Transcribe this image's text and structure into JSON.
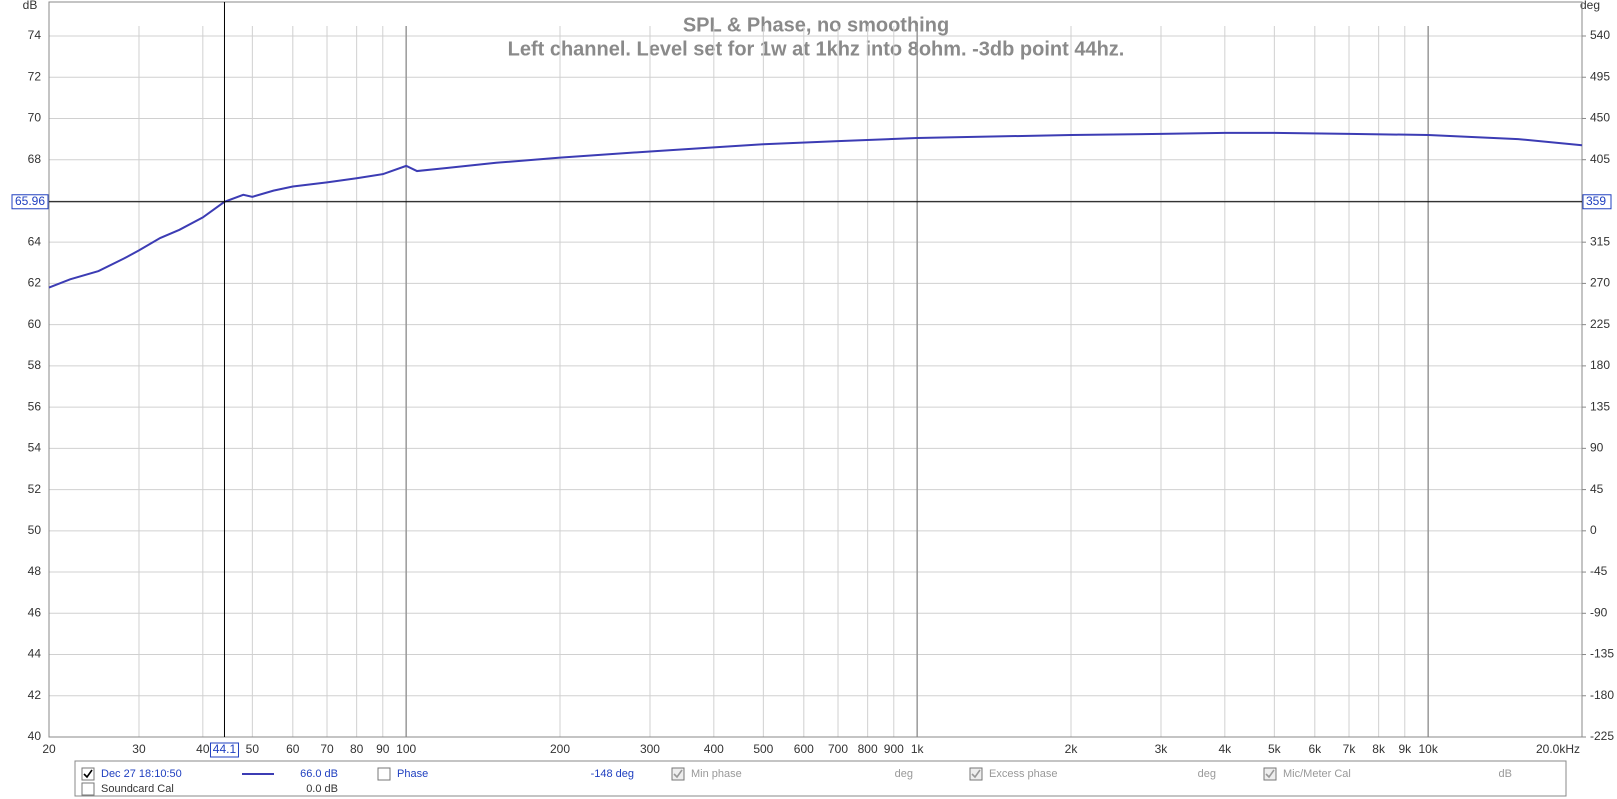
{
  "chart_data": {
    "type": "line",
    "title": "SPL & Phase, no smoothing",
    "subtitle": "Left channel. Level set for 1w at 1khz into 8ohm. -3db point 44hz.",
    "y_label": "dB",
    "y2_label": "deg",
    "log_x": true,
    "grid": true,
    "x": [
      20,
      22,
      25,
      28,
      30,
      33,
      36,
      40,
      44.1,
      48,
      50,
      55,
      60,
      70,
      80,
      90,
      100,
      105,
      120,
      150,
      200,
      300,
      400,
      500,
      700,
      1000,
      2000,
      3000,
      4000,
      5000,
      7000,
      10000,
      15000,
      20000
    ],
    "series": [
      {
        "name": "Dec 27 18:10:50",
        "color": "#3c3cb4",
        "values": [
          61.8,
          62.2,
          62.6,
          63.2,
          63.6,
          64.2,
          64.6,
          65.2,
          65.96,
          66.3,
          66.2,
          66.5,
          66.7,
          66.9,
          67.1,
          67.3,
          67.7,
          67.45,
          67.6,
          67.85,
          68.1,
          68.4,
          68.6,
          68.75,
          68.9,
          69.05,
          69.2,
          69.25,
          69.3,
          69.3,
          69.25,
          69.2,
          69.0,
          68.7
        ]
      }
    ],
    "xlim": [
      20,
      20000
    ],
    "xticks": [
      20,
      30,
      40,
      50,
      60,
      70,
      80,
      90,
      100,
      200,
      300,
      400,
      500,
      600,
      700,
      800,
      900,
      {
        "value": 1000,
        "label": "1k"
      },
      {
        "value": 2000,
        "label": "2k"
      },
      {
        "value": 3000,
        "label": "3k"
      },
      {
        "value": 4000,
        "label": "4k"
      },
      {
        "value": 5000,
        "label": "5k"
      },
      {
        "value": 6000,
        "label": "6k"
      },
      {
        "value": 7000,
        "label": "7k"
      },
      {
        "value": 8000,
        "label": "8k"
      },
      {
        "value": 9000,
        "label": "9k"
      },
      {
        "value": 10000,
        "label": "10k"
      },
      {
        "value": 20000,
        "label": "20.0kHz"
      }
    ],
    "ylim": [
      40,
      74
    ],
    "yticks": [
      40,
      42,
      44,
      46,
      48,
      50,
      52,
      54,
      56,
      58,
      60,
      62,
      64,
      66,
      68,
      70,
      72,
      74
    ],
    "y2lim": [
      -225,
      540
    ],
    "y2ticks": [
      -225,
      -180,
      -135,
      -90,
      -45,
      0,
      45,
      90,
      135,
      180,
      225,
      270,
      315,
      359,
      405,
      450,
      495,
      540
    ],
    "cursor": {
      "x": {
        "value": 44.1,
        "label": "44.1"
      },
      "y": {
        "value": 65.96,
        "label": "65.96"
      },
      "y2": 359
    }
  },
  "legend_panel": {
    "series_checked": true,
    "series_value": "66.0 dB",
    "phase": {
      "label": "Phase",
      "value": "-148 deg",
      "checked": false
    },
    "min_phase": {
      "label": "Min phase",
      "unit": "deg",
      "checked": true,
      "enabled": false
    },
    "excess_phase": {
      "label": "Excess phase",
      "unit": "deg",
      "checked": true,
      "enabled": false
    },
    "mic_cal": {
      "label": "Mic/Meter Cal",
      "unit": "dB",
      "checked": true,
      "enabled": false
    },
    "soundcard_cal": {
      "label": "Soundcard Cal",
      "value": "0.0 dB",
      "checked": false
    }
  }
}
